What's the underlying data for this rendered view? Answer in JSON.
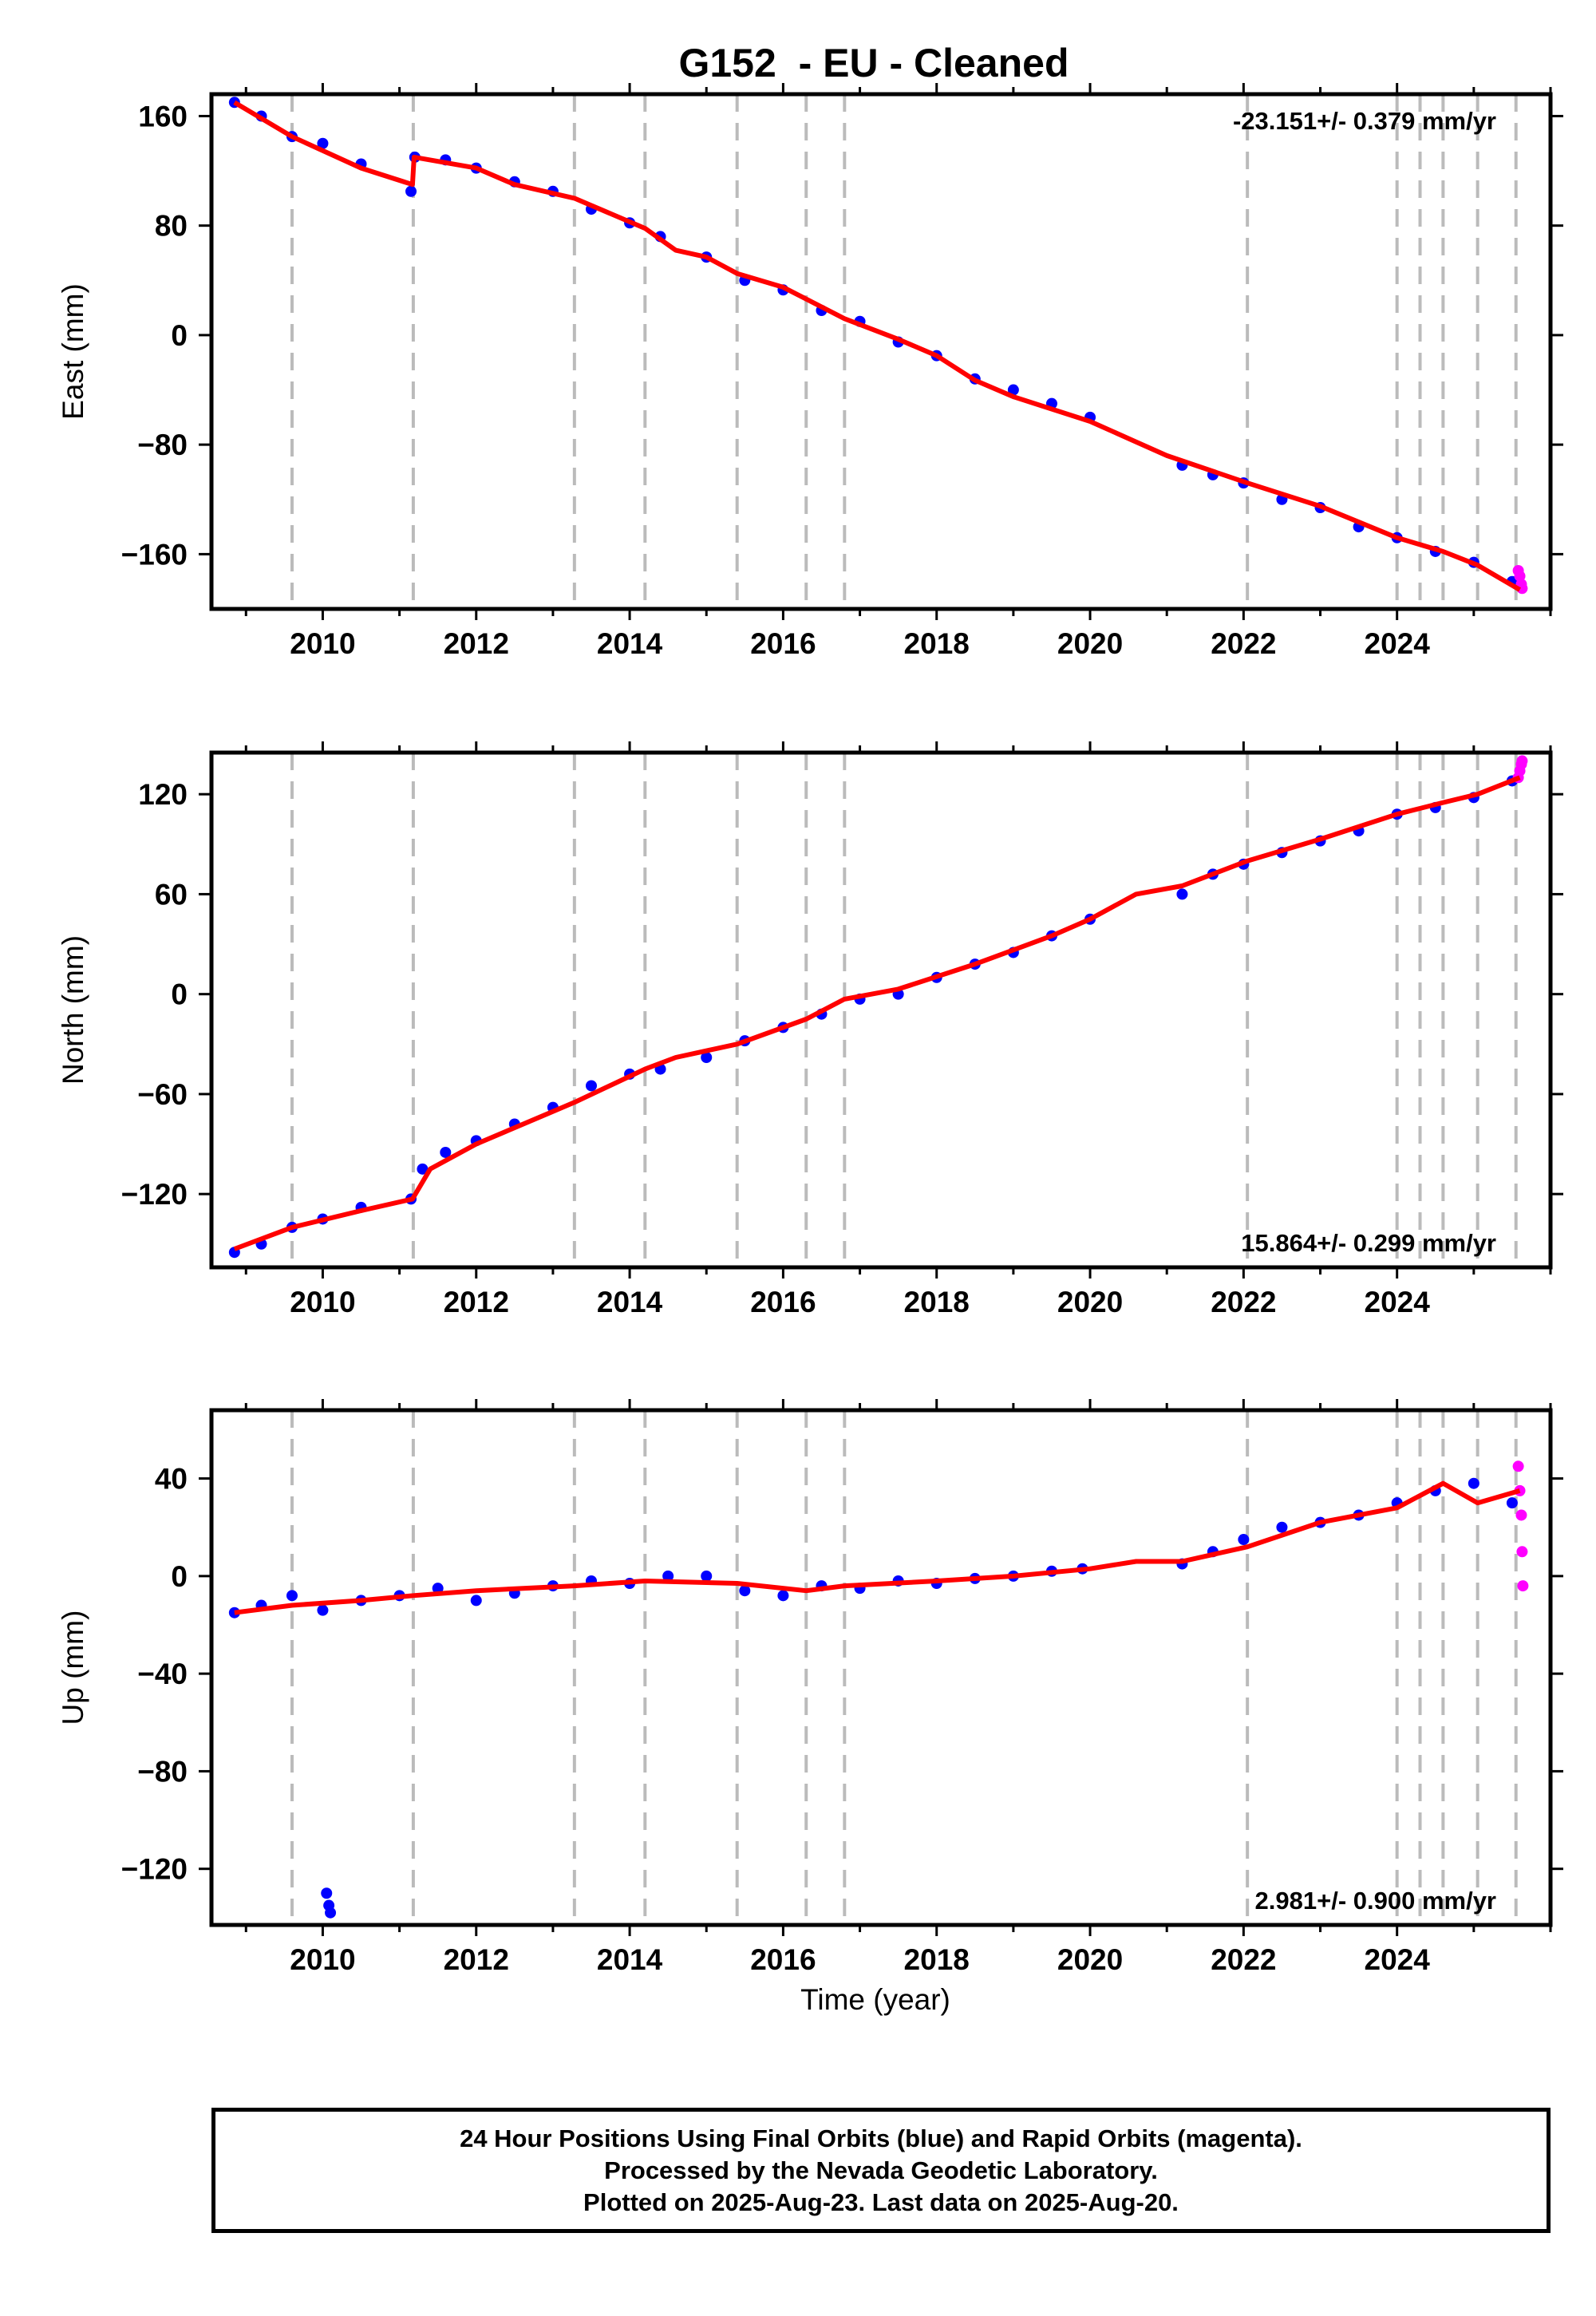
{
  "title": "G152  - EU - Cleaned",
  "xlabel": "Time (year)",
  "footer": {
    "line1": "24 Hour Positions Using Final Orbits (blue) and Rapid Orbits (magenta).",
    "line2": "Processed by the Nevada Geodetic Laboratory.",
    "line3": "Plotted on 2025-Aug-23. Last data on 2025-Aug-20."
  },
  "colors": {
    "final_orbits": "#0000ff",
    "rapid_orbits": "#ff00ff",
    "model": "#ff0000",
    "event_lines": "#bbbbbb"
  },
  "chart_data": [
    {
      "type": "scatter",
      "name": "east",
      "ylabel": "East (mm)",
      "rate": "-23.151+/- 0.379 mm/yr",
      "rate_position": "top-right",
      "xlim": [
        2008.55,
        2026.0
      ],
      "ylim": [
        -200,
        176
      ],
      "xticks": [
        2010,
        2012,
        2014,
        2016,
        2018,
        2020,
        2022,
        2024
      ],
      "yticks": [
        160,
        80,
        0,
        -80,
        -160
      ],
      "event_lines": [
        2009.6,
        2011.18,
        2013.28,
        2014.2,
        2015.4,
        2016.3,
        2016.8,
        2022.05,
        2024.0,
        2024.3,
        2024.6,
        2025.05,
        2025.55
      ],
      "series": [
        {
          "name": "Final Orbits",
          "style": "points",
          "x": [
            2008.85,
            2009.2,
            2009.6,
            2010.0,
            2010.5,
            2011.15,
            2011.2,
            2011.6,
            2012.0,
            2012.5,
            2013.0,
            2013.5,
            2014.0,
            2014.4,
            2015.0,
            2015.5,
            2016.0,
            2016.5,
            2017.0,
            2017.5,
            2018.0,
            2018.5,
            2019.0,
            2019.5,
            2020.0,
            2021.2,
            2021.6,
            2022.0,
            2022.5,
            2023.0,
            2023.5,
            2024.0,
            2024.5,
            2025.0,
            2025.5
          ],
          "y": [
            170,
            160,
            145,
            140,
            125,
            105,
            130,
            128,
            122,
            112,
            105,
            92,
            82,
            72,
            57,
            40,
            33,
            18,
            10,
            -5,
            -15,
            -32,
            -40,
            -50,
            -60,
            -95,
            -102,
            -108,
            -120,
            -126,
            -140,
            -148,
            -158,
            -166,
            -180
          ]
        },
        {
          "name": "Rapid Orbits",
          "style": "points",
          "x": [
            2025.58,
            2025.6,
            2025.62,
            2025.63
          ],
          "y": [
            -172,
            -176,
            -182,
            -185
          ]
        },
        {
          "name": "Model",
          "style": "line",
          "x": [
            2008.85,
            2009.6,
            2010.5,
            2011.17,
            2011.19,
            2012.0,
            2012.5,
            2013.28,
            2014.2,
            2014.6,
            2015.0,
            2015.4,
            2016.0,
            2016.8,
            2017.5,
            2018.0,
            2018.5,
            2019.0,
            2020.0,
            2020.6,
            2021.0,
            2022.05,
            2023.0,
            2024.0,
            2024.6,
            2025.05,
            2025.6
          ],
          "y": [
            170,
            145,
            122,
            110,
            130,
            122,
            110,
            100,
            78,
            62,
            57,
            45,
            35,
            12,
            -3,
            -15,
            -33,
            -45,
            -63,
            -78,
            -88,
            -108,
            -125,
            -148,
            -158,
            -168,
            -186
          ]
        }
      ]
    },
    {
      "type": "scatter",
      "name": "north",
      "ylabel": "North (mm)",
      "rate": "15.864+/- 0.299 mm/yr",
      "rate_position": "bottom-right",
      "xlim": [
        2008.55,
        2026.0
      ],
      "ylim": [
        -164,
        145
      ],
      "xticks": [
        2010,
        2012,
        2014,
        2016,
        2018,
        2020,
        2022,
        2024
      ],
      "yticks": [
        120,
        60,
        0,
        -60,
        -120
      ],
      "event_lines": [
        2009.6,
        2011.18,
        2013.28,
        2014.2,
        2015.4,
        2016.3,
        2016.8,
        2022.05,
        2024.0,
        2024.3,
        2024.6,
        2025.05,
        2025.55
      ],
      "series": [
        {
          "name": "Final Orbits",
          "style": "points",
          "x": [
            2008.85,
            2009.2,
            2009.6,
            2010.0,
            2010.5,
            2011.15,
            2011.3,
            2011.6,
            2012.0,
            2012.5,
            2013.0,
            2013.5,
            2014.0,
            2014.4,
            2015.0,
            2015.5,
            2016.0,
            2016.5,
            2017.0,
            2017.5,
            2018.0,
            2018.5,
            2019.0,
            2019.5,
            2020.0,
            2021.2,
            2021.6,
            2022.0,
            2022.5,
            2023.0,
            2023.5,
            2024.0,
            2024.5,
            2025.0,
            2025.5
          ],
          "y": [
            -155,
            -150,
            -140,
            -135,
            -128,
            -123,
            -105,
            -95,
            -88,
            -78,
            -68,
            -55,
            -48,
            -45,
            -38,
            -28,
            -20,
            -12,
            -3,
            0,
            10,
            18,
            25,
            35,
            45,
            60,
            72,
            78,
            85,
            92,
            98,
            108,
            112,
            118,
            128
          ]
        },
        {
          "name": "Rapid Orbits",
          "style": "points",
          "x": [
            2025.58,
            2025.6,
            2025.62,
            2025.63
          ],
          "y": [
            130,
            134,
            138,
            140
          ]
        },
        {
          "name": "Model",
          "style": "line",
          "x": [
            2008.85,
            2009.6,
            2010.5,
            2011.17,
            2011.4,
            2012.0,
            2013.28,
            2014.2,
            2014.6,
            2015.4,
            2016.3,
            2016.8,
            2017.5,
            2018.5,
            2019.5,
            2020.0,
            2020.6,
            2021.2,
            2022.05,
            2023.0,
            2024.0,
            2024.6,
            2025.05,
            2025.6
          ],
          "y": [
            -153,
            -140,
            -130,
            -123,
            -105,
            -90,
            -65,
            -45,
            -38,
            -30,
            -15,
            -3,
            3,
            18,
            35,
            45,
            60,
            65,
            80,
            93,
            108,
            115,
            120,
            130
          ]
        }
      ]
    },
    {
      "type": "scatter",
      "name": "up",
      "ylabel": "Up (mm)",
      "rate": "2.981+/- 0.900 mm/yr",
      "rate_position": "bottom-right",
      "xlim": [
        2008.55,
        2026.0
      ],
      "ylim": [
        -143,
        68
      ],
      "xticks": [
        2010,
        2012,
        2014,
        2016,
        2018,
        2020,
        2022,
        2024
      ],
      "yticks": [
        40,
        0,
        -40,
        -80,
        -120
      ],
      "event_lines": [
        2009.6,
        2011.18,
        2013.28,
        2014.2,
        2015.4,
        2016.3,
        2016.8,
        2022.05,
        2024.0,
        2024.3,
        2024.6,
        2025.05,
        2025.55
      ],
      "series": [
        {
          "name": "Final Orbits",
          "style": "points",
          "x": [
            2008.85,
            2009.2,
            2009.6,
            2010.0,
            2010.5,
            2011.0,
            2011.5,
            2012.0,
            2012.5,
            2013.0,
            2013.5,
            2014.0,
            2014.5,
            2015.0,
            2015.5,
            2016.0,
            2016.5,
            2017.0,
            2017.5,
            2018.0,
            2018.5,
            2019.0,
            2019.5,
            2019.9,
            2021.2,
            2021.6,
            2022.0,
            2022.5,
            2023.0,
            2023.5,
            2024.0,
            2024.5,
            2025.0,
            2025.5,
            2010.05,
            2010.08,
            2010.1
          ],
          "y": [
            -15,
            -12,
            -8,
            -14,
            -10,
            -8,
            -5,
            -10,
            -7,
            -4,
            -2,
            -3,
            0,
            0,
            -6,
            -8,
            -4,
            -5,
            -2,
            -3,
            -1,
            0,
            2,
            3,
            5,
            10,
            15,
            20,
            22,
            25,
            30,
            35,
            38,
            30,
            -130,
            -135,
            -138
          ]
        },
        {
          "name": "Rapid Orbits",
          "style": "points",
          "x": [
            2025.58,
            2025.6,
            2025.62,
            2025.63,
            2025.64
          ],
          "y": [
            45,
            35,
            25,
            10,
            -4
          ]
        },
        {
          "name": "Model",
          "style": "line",
          "x": [
            2008.85,
            2009.6,
            2010.5,
            2011.18,
            2012.0,
            2013.28,
            2014.2,
            2015.4,
            2016.3,
            2016.8,
            2018.0,
            2019.0,
            2020.0,
            2020.6,
            2021.2,
            2022.05,
            2023.0,
            2024.0,
            2024.6,
            2025.05,
            2025.6
          ],
          "y": [
            -15,
            -12,
            -10,
            -8,
            -6,
            -4,
            -2,
            -3,
            -6,
            -4,
            -2,
            0,
            3,
            6,
            6,
            12,
            22,
            28,
            38,
            30,
            35
          ]
        }
      ]
    }
  ]
}
